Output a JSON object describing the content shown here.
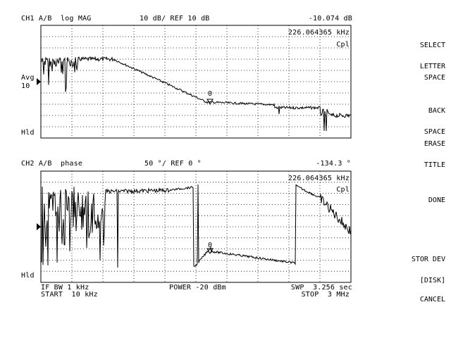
{
  "ch1": {
    "header_left": "CH1 A/B  log MAG",
    "header_scale": "10 dB/ REF 10 dB",
    "header_value": "-10.074 dB",
    "marker_freq": "226.064365 kHz",
    "cpl": "Cpl",
    "avg_label": "Avg",
    "avg_value": "10",
    "hld": "Hld",
    "marker_label": "0"
  },
  "ch2": {
    "header_left": "CH2 A/B  phase",
    "header_scale": "50 °/ REF 0 °",
    "header_value": "-134.3 °",
    "marker_freq": "226.064365 kHz",
    "cpl": "Cpl",
    "hld": "Hld",
    "marker_label": "0"
  },
  "footer": {
    "if_bw": "IF BW 1 kHz",
    "power": "POWER -20 dBm",
    "swp": "SWP  3.256 sec",
    "start": "START  10 kHz",
    "stop": "STOP  3 MHz"
  },
  "softkeys": [
    {
      "line1": "SELECT",
      "line2": "LETTER"
    },
    {
      "line1": "SPACE",
      "line2": ""
    },
    {
      "line1": "BACK",
      "line2": "SPACE"
    },
    {
      "line1": "ERASE",
      "line2": "TITLE"
    },
    {
      "line1": "DONE",
      "line2": ""
    },
    {
      "line1": "STOR DEV",
      "line2": "[DISK]"
    },
    {
      "line1": "CANCEL",
      "line2": ""
    }
  ]
}
